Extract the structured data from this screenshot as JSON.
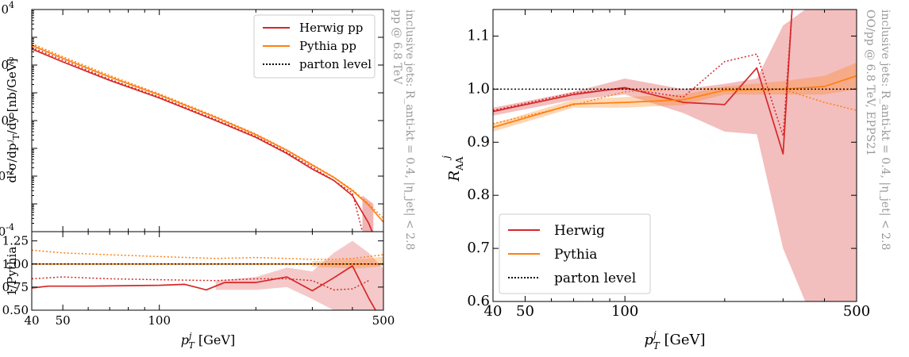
{
  "colors": {
    "herwig": "#d62728",
    "pythia": "#ff7f0e",
    "parton": "#000000",
    "note": "#999999"
  },
  "chart_data": [
    {
      "type": "line",
      "id": "left-top",
      "ylabel": "d²σ/dp_T^j/dy [nb/GeV]",
      "xscale": "log",
      "yscale": "log",
      "xlim": [
        40,
        500
      ],
      "ylim": [
        0.0001,
        10000
      ],
      "ytick_labels": [
        "10^-4",
        "10^-2",
        "10^0",
        "10^2",
        "10^4"
      ],
      "side_note": [
        "pp @ 6.8 TeV",
        "inclusive jets: R_anti-kt = 0.4, |η_jet| < 2.8"
      ],
      "legend_position": "top-right",
      "legend": [
        "Herwig pp",
        "Pythia pp",
        "parton level"
      ],
      "series": [
        {
          "name": "Herwig pp",
          "style": "solid",
          "color": "herwig",
          "x": [
            40,
            50,
            70,
            100,
            150,
            200,
            250,
            300,
            350,
            400,
            450,
            500
          ],
          "y": [
            380,
            130,
            28,
            6.5,
            1.0,
            0.25,
            0.065,
            0.018,
            0.007,
            0.002,
            0.0002,
            1e-05
          ]
        },
        {
          "name": "Pythia pp",
          "style": "solid",
          "color": "pythia",
          "x": [
            40,
            50,
            70,
            100,
            150,
            200,
            250,
            300,
            350,
            400,
            450,
            500
          ],
          "y": [
            510,
            175,
            37,
            8.4,
            1.3,
            0.31,
            0.085,
            0.025,
            0.009,
            0.003,
            0.0009,
            0.00022
          ]
        },
        {
          "name": "Herwig pp (parton level)",
          "style": "dotted",
          "color": "herwig",
          "x": [
            40,
            50,
            70,
            100,
            150,
            200,
            250,
            300,
            350,
            400,
            430
          ],
          "y": [
            430,
            150,
            31,
            7.1,
            1.1,
            0.27,
            0.072,
            0.021,
            0.007,
            0.0025,
            0.0001
          ]
        },
        {
          "name": "Pythia pp (parton level)",
          "style": "dotted",
          "color": "pythia",
          "x": [
            40,
            50,
            70,
            100,
            150,
            200,
            250,
            300,
            350,
            400,
            450,
            500
          ],
          "y": [
            590,
            200,
            42,
            9.2,
            1.4,
            0.33,
            0.088,
            0.026,
            0.0093,
            0.0032,
            0.001,
            0.0003
          ]
        }
      ],
      "bands": [
        {
          "color": "herwig",
          "opacity": 0.35,
          "x": [
            430,
            465
          ],
          "ylow": [
            0.0001,
            0.0001
          ],
          "yhigh": [
            0.002,
            0.001
          ]
        }
      ]
    },
    {
      "type": "line",
      "id": "left-ratio",
      "ylabel": "1/Pythia",
      "xlabel": "p_T^j [GeV]",
      "xscale": "log",
      "xlim": [
        40,
        500
      ],
      "ylim": [
        0.5,
        1.35
      ],
      "yticks": [
        0.5,
        0.75,
        1.0,
        1.25
      ],
      "ytick_labels": [
        "0.50",
        "0.75",
        "1.00",
        "1.25"
      ],
      "xticks": [
        40,
        50,
        100,
        500
      ],
      "xtick_labels": [
        "40",
        "50",
        "100",
        "500"
      ],
      "series": [
        {
          "name": "Herwig",
          "style": "solid",
          "color": "herwig",
          "x": [
            40,
            45,
            60,
            100,
            120,
            140,
            160,
            200,
            250,
            300,
            350,
            400,
            450,
            500
          ],
          "y": [
            0.74,
            0.76,
            0.76,
            0.77,
            0.78,
            0.72,
            0.8,
            0.8,
            0.86,
            0.71,
            0.85,
            0.98,
            0.63,
            0.35
          ]
        },
        {
          "name": "Herwig parton",
          "style": "dotted",
          "color": "herwig",
          "x": [
            40,
            50,
            70,
            100,
            150,
            200,
            250,
            300,
            350,
            400,
            450
          ],
          "y": [
            0.84,
            0.86,
            0.84,
            0.83,
            0.82,
            0.84,
            0.84,
            0.82,
            0.72,
            0.73,
            0.82
          ]
        },
        {
          "name": "Pythia parton",
          "style": "dotted",
          "color": "pythia",
          "x": [
            40,
            50,
            70,
            100,
            150,
            200,
            250,
            300,
            350,
            400,
            450,
            500
          ],
          "y": [
            1.15,
            1.12,
            1.1,
            1.08,
            1.06,
            1.07,
            1.06,
            1.05,
            1.05,
            1.06,
            1.08,
            1.1
          ]
        },
        {
          "name": "Pythia",
          "style": "solid",
          "color": "pythia",
          "x": [
            40,
            500
          ],
          "y": [
            1.0,
            1.0
          ]
        },
        {
          "name": "parton level",
          "style": "dotted",
          "color": "parton",
          "x": [
            40,
            500
          ],
          "y": [
            1.0,
            1.0
          ]
        }
      ],
      "bands": [
        {
          "color": "herwig",
          "opacity": 0.25,
          "x": [
            150,
            200,
            250,
            300,
            350,
            400,
            450,
            500
          ],
          "ylow": [
            0.72,
            0.72,
            0.75,
            0.62,
            0.5,
            0.5,
            0.5,
            0.5
          ],
          "yhigh": [
            0.82,
            0.86,
            0.96,
            0.92,
            1.12,
            1.25,
            1.12,
            0.95
          ]
        },
        {
          "color": "pythia",
          "opacity": 0.3,
          "x": [
            300,
            350,
            400,
            450,
            500
          ],
          "ylow": [
            0.97,
            0.96,
            0.95,
            0.96,
            0.98
          ],
          "yhigh": [
            1.03,
            1.04,
            1.05,
            1.06,
            1.08
          ]
        }
      ]
    },
    {
      "type": "line",
      "id": "right",
      "ylabel": "R_AA^j",
      "xlabel": "p_T^j [GeV]",
      "xscale": "log",
      "xlim": [
        40,
        500
      ],
      "ylim": [
        0.6,
        1.15
      ],
      "yticks": [
        0.6,
        0.7,
        0.8,
        0.9,
        1.0,
        1.1
      ],
      "ytick_labels": [
        "0.6",
        "0.7",
        "0.8",
        "0.9",
        "1.0",
        "1.1"
      ],
      "xticks": [
        40,
        50,
        100,
        500
      ],
      "xtick_labels": [
        "40",
        "50",
        "100",
        "500"
      ],
      "side_note": [
        "OO/pp @ 6.8 TeV, EPPS21",
        "inclusive jets: R_anti-kt = 0.4, |η_jet| < 2.8"
      ],
      "legend_position": "bottom-left",
      "legend": [
        "Herwig",
        "Pythia",
        "parton level"
      ],
      "series": [
        {
          "name": "Herwig",
          "style": "solid",
          "color": "herwig",
          "x": [
            40,
            70,
            100,
            150,
            200,
            250,
            300,
            320,
            340
          ],
          "y": [
            0.958,
            0.99,
            1.003,
            0.975,
            0.971,
            1.04,
            0.878,
            1.16,
            1.16
          ]
        },
        {
          "name": "Pythia",
          "style": "solid",
          "color": "pythia",
          "x": [
            40,
            70,
            100,
            150,
            200,
            300,
            400,
            500
          ],
          "y": [
            0.928,
            0.972,
            0.975,
            0.98,
            0.998,
            1.0,
            1.005,
            1.025
          ]
        },
        {
          "name": "Herwig parton",
          "style": "dotted",
          "color": "herwig",
          "x": [
            40,
            70,
            100,
            150,
            200,
            250,
            300,
            320,
            340
          ],
          "y": [
            0.96,
            0.993,
            1.001,
            0.985,
            1.052,
            1.066,
            0.912,
            1.16,
            1.16
          ]
        },
        {
          "name": "Pythia parton",
          "style": "dotted",
          "color": "pythia",
          "x": [
            40,
            70,
            100,
            150,
            200,
            300,
            400,
            500
          ],
          "y": [
            0.935,
            0.97,
            0.995,
            1.0,
            1.002,
            1.0,
            0.975,
            0.96
          ]
        },
        {
          "name": "parton level",
          "style": "dotted",
          "color": "parton",
          "x": [
            40,
            500
          ],
          "y": [
            1.0,
            1.0
          ]
        }
      ],
      "bands": [
        {
          "color": "herwig",
          "opacity": 0.3,
          "x": [
            40,
            70,
            100,
            150,
            200,
            250,
            300,
            350,
            400,
            450,
            500
          ],
          "ylow": [
            0.95,
            0.98,
            0.99,
            0.955,
            0.92,
            0.915,
            0.7,
            0.6,
            0.6,
            0.6,
            0.6
          ],
          "yhigh": [
            0.965,
            0.995,
            1.02,
            1.0,
            1.01,
            1.02,
            1.12,
            1.15,
            1.15,
            1.15,
            1.15
          ]
        },
        {
          "color": "pythia",
          "opacity": 0.3,
          "x": [
            40,
            70,
            100,
            150,
            200,
            300,
            400,
            500
          ],
          "ylow": [
            0.92,
            0.965,
            0.965,
            0.97,
            0.99,
            0.99,
            0.99,
            1.0
          ],
          "yhigh": [
            0.935,
            0.98,
            0.985,
            0.99,
            1.005,
            1.015,
            1.025,
            1.05
          ]
        }
      ]
    }
  ]
}
